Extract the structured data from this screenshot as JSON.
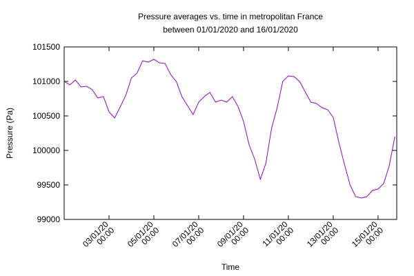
{
  "chart_data": {
    "type": "line",
    "title": "Pressure averages vs. time in metropolitan France",
    "subtitle": "between 01/01/2020 and 16/01/2020",
    "x_label": "Time",
    "y_label": "Pressure (Pa)",
    "x": [
      "01/01/20 00:00",
      "01/01/20 06:00",
      "01/01/20 12:00",
      "01/01/20 18:00",
      "02/01/20 00:00",
      "02/01/20 06:00",
      "02/01/20 12:00",
      "02/01/20 18:00",
      "03/01/20 00:00",
      "03/01/20 06:00",
      "03/01/20 12:00",
      "03/01/20 18:00",
      "04/01/20 00:00",
      "04/01/20 06:00",
      "04/01/20 12:00",
      "04/01/20 18:00",
      "05/01/20 00:00",
      "05/01/20 06:00",
      "05/01/20 12:00",
      "05/01/20 18:00",
      "06/01/20 00:00",
      "06/01/20 06:00",
      "06/01/20 12:00",
      "06/01/20 18:00",
      "07/01/20 00:00",
      "07/01/20 06:00",
      "07/01/20 12:00",
      "07/01/20 18:00",
      "08/01/20 00:00",
      "08/01/20 06:00",
      "08/01/20 12:00",
      "08/01/20 18:00",
      "09/01/20 00:00",
      "09/01/20 06:00",
      "09/01/20 12:00",
      "09/01/20 18:00",
      "10/01/20 00:00",
      "10/01/20 06:00",
      "10/01/20 12:00",
      "10/01/20 18:00",
      "11/01/20 00:00",
      "11/01/20 06:00",
      "11/01/20 12:00",
      "11/01/20 18:00",
      "12/01/20 00:00",
      "12/01/20 06:00",
      "12/01/20 12:00",
      "12/01/20 18:00",
      "13/01/20 00:00",
      "13/01/20 06:00",
      "13/01/20 12:00",
      "13/01/20 18:00",
      "14/01/20 00:00",
      "14/01/20 06:00",
      "14/01/20 12:00",
      "14/01/20 18:00",
      "15/01/20 00:00",
      "15/01/20 06:00",
      "15/01/20 12:00",
      "15/01/20 18:00"
    ],
    "series": [
      {
        "color": "#9400d3",
        "values": [
          101000,
          100950,
          101020,
          100920,
          100930,
          100880,
          100760,
          100780,
          100560,
          100470,
          100630,
          100800,
          101050,
          101120,
          101300,
          101280,
          101320,
          101270,
          101260,
          101100,
          101000,
          100780,
          100650,
          100520,
          100700,
          100780,
          100840,
          100700,
          100730,
          100700,
          100780,
          100640,
          100420,
          100080,
          99870,
          99580,
          99820,
          100320,
          100620,
          101000,
          101080,
          101070,
          101000,
          100850,
          100700,
          100680,
          100620,
          100590,
          100480,
          100120,
          99800,
          99500,
          99330,
          99310,
          99330,
          99420,
          99440,
          99520,
          99780,
          100200
        ]
      }
    ],
    "xlim": [
      "01/01/20 00:00",
      "15/01/20 20:00"
    ],
    "xticks": [
      "03/01/20 00:00",
      "05/01/20 00:00",
      "07/01/20 00:00",
      "09/01/20 00:00",
      "11/01/20 00:00",
      "13/01/20 00:00",
      "15/01/20 00:00"
    ],
    "ylim": [
      99000,
      101500
    ],
    "yticks": [
      99000,
      99500,
      100000,
      100500,
      101000,
      101500
    ]
  }
}
